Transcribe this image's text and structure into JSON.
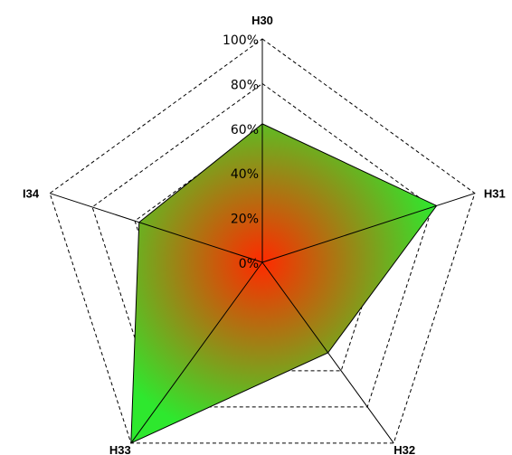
{
  "chart_data": {
    "type": "radar",
    "categories": [
      "H30",
      "H31",
      "H32",
      "H33",
      "I34"
    ],
    "values": [
      62,
      82,
      50,
      100,
      58
    ],
    "tick_labels": [
      "0%",
      "20%",
      "40%",
      "60%",
      "80%",
      "100%"
    ],
    "tick_values": [
      0,
      20,
      40,
      60,
      80,
      100
    ],
    "range": [
      0,
      100
    ],
    "grid": "dashed",
    "fill_gradient": {
      "center": "#ff2a00",
      "edge": "#2ee82e"
    }
  }
}
